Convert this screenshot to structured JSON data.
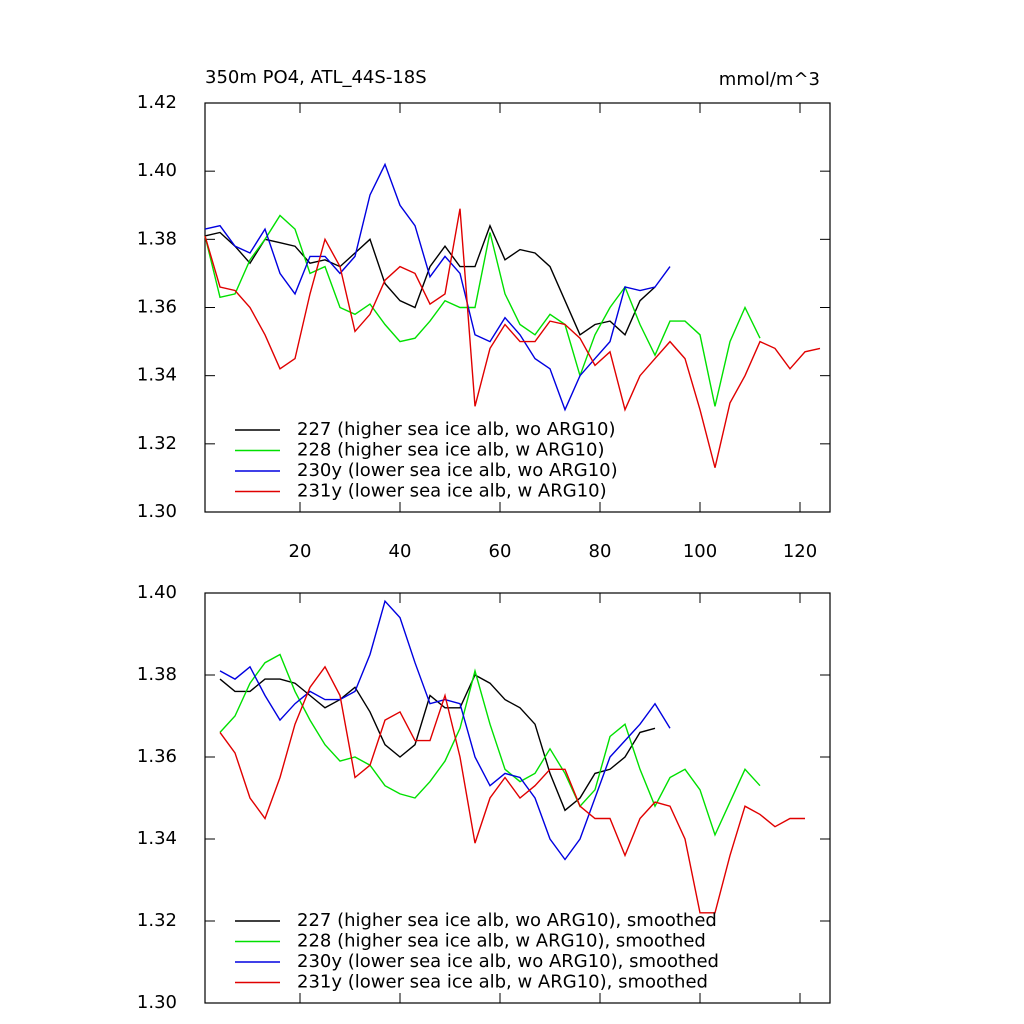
{
  "chart_data": [
    {
      "type": "line",
      "title": "350m PO4, ATL_44S-18S",
      "units": "mmol/m^3",
      "x": [
        1,
        4,
        7,
        10,
        13,
        16,
        19,
        22,
        25,
        28,
        31,
        34,
        37,
        40,
        43,
        46,
        49,
        52,
        55,
        58,
        61,
        64,
        67,
        70,
        73,
        76,
        79,
        82,
        85,
        88,
        91,
        94,
        97,
        100,
        103,
        106,
        109,
        112,
        115,
        118,
        121,
        124
      ],
      "xlim": [
        1,
        126
      ],
      "xticks": [
        20,
        40,
        60,
        80,
        100,
        120
      ],
      "ylim": [
        1.3,
        1.42
      ],
      "yticks": [
        {
          "value": 1.3,
          "label": "1.30"
        },
        {
          "value": 1.32,
          "label": "1.32"
        },
        {
          "value": 1.34,
          "label": "1.34"
        },
        {
          "value": 1.36,
          "label": "1.36"
        },
        {
          "value": 1.38,
          "label": "1.38"
        },
        {
          "value": 1.4,
          "label": "1.40"
        },
        {
          "value": 1.42,
          "label": "1.42"
        }
      ],
      "legend": "lower left",
      "series": [
        {
          "name": "227 (higher sea ice alb, wo ARG10)",
          "color": "#000000",
          "values": [
            1.381,
            1.382,
            1.378,
            1.373,
            1.38,
            1.379,
            1.378,
            1.373,
            1.374,
            1.372,
            1.376,
            1.38,
            1.367,
            1.362,
            1.36,
            1.372,
            1.378,
            1.372,
            1.372,
            1.384,
            1.374,
            1.377,
            1.376,
            1.372,
            1.362,
            1.352,
            1.355,
            1.356,
            1.352,
            1.362,
            1.366,
            null,
            null,
            null,
            null,
            null,
            null,
            null,
            null,
            null,
            null,
            null
          ]
        },
        {
          "name": "228 (higher sea ice alb, w ARG10)",
          "color": "#00e000",
          "values": [
            1.381,
            1.363,
            1.364,
            1.374,
            1.38,
            1.387,
            1.383,
            1.37,
            1.372,
            1.36,
            1.358,
            1.361,
            1.355,
            1.35,
            1.351,
            1.356,
            1.362,
            1.36,
            1.36,
            1.382,
            1.364,
            1.355,
            1.352,
            1.358,
            1.355,
            1.34,
            1.352,
            1.36,
            1.366,
            1.355,
            1.346,
            1.356,
            1.356,
            1.352,
            1.331,
            1.35,
            1.36,
            1.351,
            null,
            null,
            null,
            null
          ]
        },
        {
          "name": "230y (lower sea ice alb, wo ARG10)",
          "color": "#0000e0",
          "values": [
            1.383,
            1.384,
            1.378,
            1.376,
            1.383,
            1.37,
            1.364,
            1.375,
            1.375,
            1.37,
            1.375,
            1.393,
            1.402,
            1.39,
            1.384,
            1.369,
            1.375,
            1.37,
            1.352,
            1.35,
            1.357,
            1.352,
            1.345,
            1.342,
            1.33,
            1.34,
            1.345,
            1.35,
            1.366,
            1.365,
            1.366,
            1.372,
            null,
            null,
            null,
            null,
            null,
            null,
            null,
            null,
            null,
            null
          ]
        },
        {
          "name": "231y (lower sea ice alb, w ARG10)",
          "color": "#e00000",
          "values": [
            1.381,
            1.366,
            1.365,
            1.36,
            1.352,
            1.342,
            1.345,
            1.364,
            1.38,
            1.372,
            1.353,
            1.358,
            1.368,
            1.372,
            1.37,
            1.361,
            1.364,
            1.389,
            1.331,
            1.348,
            1.355,
            1.35,
            1.35,
            1.356,
            1.355,
            1.351,
            1.343,
            1.347,
            1.33,
            1.34,
            1.345,
            1.35,
            1.345,
            1.33,
            1.313,
            1.332,
            1.34,
            1.35,
            1.348,
            1.342,
            1.347,
            1.348
          ]
        }
      ]
    },
    {
      "type": "line",
      "x": [
        1,
        4,
        7,
        10,
        13,
        16,
        19,
        22,
        25,
        28,
        31,
        34,
        37,
        40,
        43,
        46,
        49,
        52,
        55,
        58,
        61,
        64,
        67,
        70,
        73,
        76,
        79,
        82,
        85,
        88,
        91,
        94,
        97,
        100,
        103,
        106,
        109,
        112,
        115,
        118,
        121,
        124
      ],
      "xlim": [
        1,
        126
      ],
      "xticks": [
        20,
        40,
        60,
        80,
        100,
        120
      ],
      "ylim": [
        1.3,
        1.4
      ],
      "yticks": [
        {
          "value": 1.3,
          "label": "1.30"
        },
        {
          "value": 1.32,
          "label": "1.32"
        },
        {
          "value": 1.34,
          "label": "1.34"
        },
        {
          "value": 1.36,
          "label": "1.36"
        },
        {
          "value": 1.38,
          "label": "1.38"
        },
        {
          "value": 1.4,
          "label": "1.40"
        }
      ],
      "legend": "lower left",
      "series": [
        {
          "name": "227 (higher sea ice alb, wo ARG10), smoothed",
          "color": "#000000",
          "values": [
            null,
            1.379,
            1.376,
            1.376,
            1.379,
            1.379,
            1.378,
            1.375,
            1.372,
            1.374,
            1.377,
            1.371,
            1.363,
            1.36,
            1.363,
            1.375,
            1.372,
            1.372,
            1.38,
            1.378,
            1.374,
            1.372,
            1.368,
            1.356,
            1.347,
            1.35,
            1.356,
            1.357,
            1.36,
            1.366,
            1.367,
            null,
            null,
            null,
            null,
            null,
            null,
            null,
            null,
            null,
            null,
            null
          ]
        },
        {
          "name": "228 (higher sea ice alb, w ARG10), smoothed",
          "color": "#00e000",
          "values": [
            null,
            1.366,
            1.37,
            1.378,
            1.383,
            1.385,
            1.376,
            1.369,
            1.363,
            1.359,
            1.36,
            1.358,
            1.353,
            1.351,
            1.35,
            1.354,
            1.359,
            1.367,
            1.381,
            1.368,
            1.357,
            1.354,
            1.356,
            1.362,
            1.356,
            1.348,
            1.352,
            1.365,
            1.368,
            1.357,
            1.348,
            1.355,
            1.357,
            1.352,
            1.341,
            1.349,
            1.357,
            1.353,
            null,
            null,
            null,
            null
          ]
        },
        {
          "name": "230y (lower sea ice alb, wo ARG10), smoothed",
          "color": "#0000e0",
          "values": [
            null,
            1.381,
            1.379,
            1.382,
            1.375,
            1.369,
            1.373,
            1.376,
            1.374,
            1.374,
            1.376,
            1.385,
            1.398,
            1.394,
            1.383,
            1.373,
            1.374,
            1.373,
            1.36,
            1.353,
            1.356,
            1.355,
            1.35,
            1.34,
            1.335,
            1.34,
            1.35,
            1.36,
            1.364,
            1.368,
            1.373,
            1.367,
            null,
            null,
            null,
            null,
            null,
            null,
            null,
            null,
            null,
            null
          ]
        },
        {
          "name": "231y (lower sea ice alb, w ARG10), smoothed",
          "color": "#e00000",
          "values": [
            null,
            1.366,
            1.361,
            1.35,
            1.345,
            1.355,
            1.368,
            1.377,
            1.382,
            1.375,
            1.355,
            1.358,
            1.369,
            1.371,
            1.364,
            1.364,
            1.375,
            1.36,
            1.339,
            1.35,
            1.355,
            1.35,
            1.353,
            1.357,
            1.357,
            1.348,
            1.345,
            1.345,
            1.336,
            1.345,
            1.349,
            1.348,
            1.34,
            1.322,
            1.322,
            1.336,
            1.348,
            1.346,
            1.343,
            1.345,
            1.345,
            null
          ]
        }
      ]
    }
  ]
}
